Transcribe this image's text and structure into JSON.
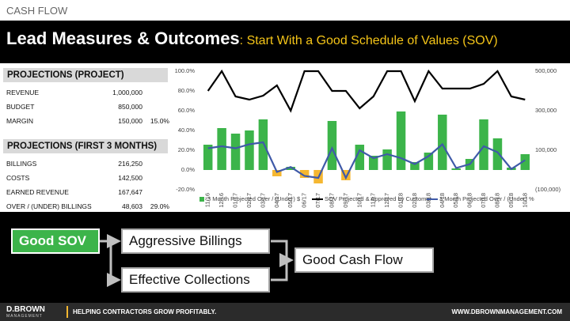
{
  "header": {
    "section": "CASH FLOW",
    "title": "Lead Measures & Outcomes",
    "subtitle": ": Start With a Good Schedule of Values (SOV)"
  },
  "tables": [
    {
      "title": "PROJECTIONS (PROJECT)",
      "rows": [
        [
          "REVENUE",
          "1,000,000"
        ],
        [
          "BUDGET",
          "850,000"
        ],
        [
          "MARGIN",
          "150,000",
          "15.0%"
        ]
      ]
    },
    {
      "title": "PROJECTIONS (FIRST 3 MONTHS)",
      "rows": [
        [
          "BILLINGS",
          "216,250"
        ],
        [
          "COSTS",
          "142,500"
        ],
        [
          "EARNED REVENUE",
          "167,647"
        ],
        [
          "OVER / (UNDER) BILLINGS",
          "48,603",
          "29.0%"
        ]
      ]
    }
  ],
  "chart_data": {
    "type": "combo",
    "categories": [
      "11/16",
      "12/16",
      "01/17",
      "02/17",
      "03/17",
      "04/17",
      "05/17",
      "06/17",
      "07/17",
      "08/17",
      "09/17",
      "10/17",
      "11/17",
      "12/17",
      "01/18",
      "02/18",
      "03/18",
      "04/18",
      "05/18",
      "06/18",
      "07/18",
      "08/18",
      "09/18",
      "10/18"
    ],
    "series": [
      {
        "name": "3 Month Projected Over / (Under) $",
        "type": "bar",
        "axis": "y2",
        "color": "#3cb44a",
        "negative_color": "#f5b731",
        "values": [
          128000,
          212000,
          184000,
          200000,
          256000,
          -32000,
          16000,
          -40000,
          -68000,
          248000,
          -52000,
          128000,
          72000,
          104000,
          296000,
          40000,
          88000,
          280000,
          8000,
          56000,
          256000,
          160000,
          12000,
          80000
        ]
      },
      {
        "name": "SOV Projected & Approved by Customer",
        "type": "line",
        "axis": "y2",
        "color": "#000000",
        "values": [
          400000,
          500000,
          372000,
          356000,
          376000,
          428000,
          300000,
          500000,
          500000,
          400000,
          400000,
          312000,
          372000,
          500000,
          500000,
          348000,
          500000,
          412000,
          412000,
          412000,
          436000,
          500000,
          372000,
          356000
        ]
      },
      {
        "name": "3 Month Projected Over / (Under) %",
        "type": "line",
        "axis": "y",
        "color": "#3f5aa8",
        "values": [
          22,
          24,
          22,
          26,
          28,
          -2,
          3,
          -6,
          -8,
          22,
          -8,
          20,
          12,
          16,
          12,
          6,
          14,
          26,
          2,
          6,
          24,
          18,
          1,
          10
        ]
      }
    ],
    "ylim": [
      -20,
      100
    ],
    "yticks": [
      {
        "value": -20,
        "label": "-20.0%"
      },
      {
        "value": 0,
        "label": "0.0%"
      },
      {
        "value": 20,
        "label": "20.0%"
      },
      {
        "value": 40,
        "label": "40.0%"
      },
      {
        "value": 60,
        "label": "60.0%"
      },
      {
        "value": 80,
        "label": "80.0%"
      },
      {
        "value": 100,
        "label": "100.0%"
      }
    ],
    "y2lim": [
      -100000,
      500000
    ],
    "y2ticks": [
      {
        "value": -100000,
        "label": "(100,000)"
      },
      {
        "value": 100000,
        "label": "100,000"
      },
      {
        "value": 300000,
        "label": "300,000"
      },
      {
        "value": 500000,
        "label": "500,000"
      }
    ],
    "grid": false,
    "legend": "bottom"
  },
  "flow": {
    "nodes": [
      {
        "label": "Good SOV"
      },
      {
        "label": "Aggressive Billings"
      },
      {
        "label": "Effective Collections"
      },
      {
        "label": "Good Cash Flow"
      }
    ]
  },
  "footer": {
    "brand": "D.BROWN",
    "brand_sub": "MANAGEMENT",
    "tagline": "HELPING CONTRACTORS GROW PROFITABLY.",
    "url": "WWW.DBROWNMANAGEMENT.COM"
  }
}
